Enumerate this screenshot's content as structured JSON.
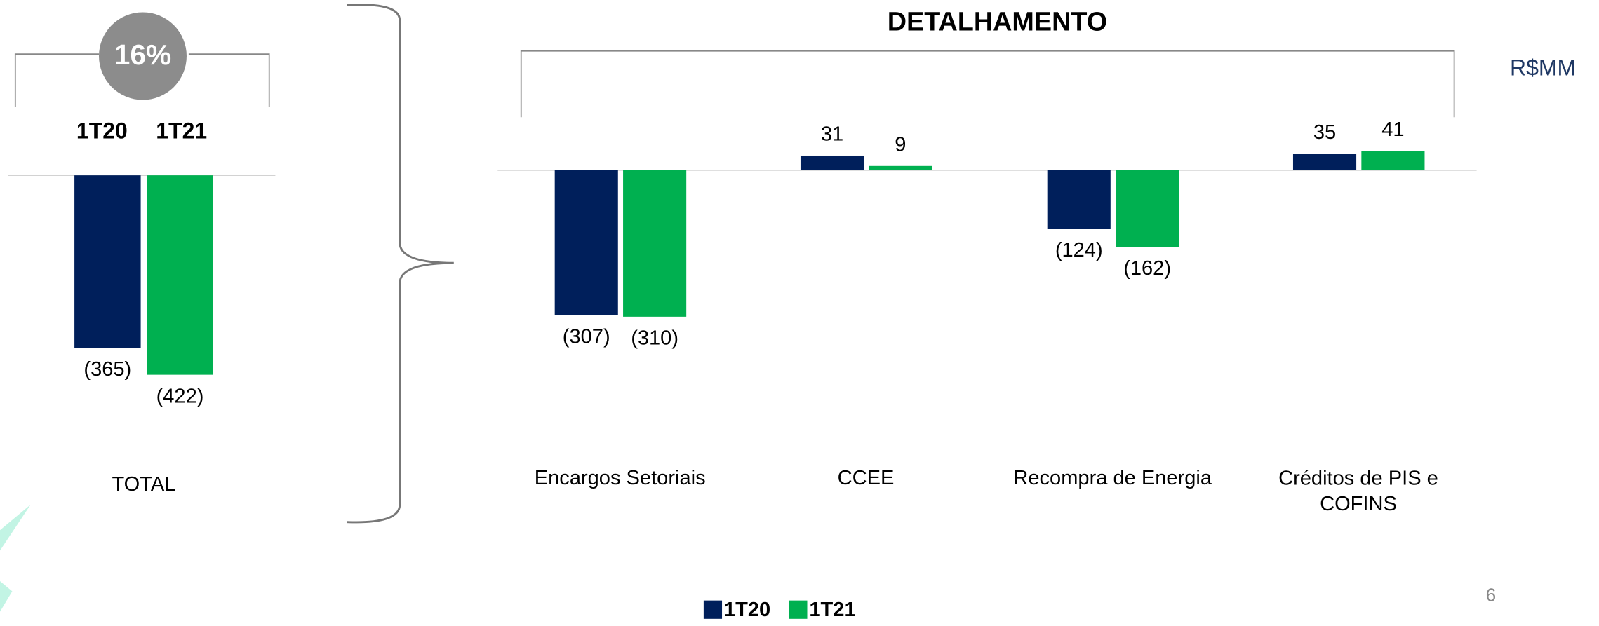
{
  "chart_data": [
    {
      "type": "bar",
      "badge": "16%",
      "categories": [
        "TOTAL"
      ],
      "series": [
        {
          "name": "1T20",
          "color": "#001f5b",
          "values": [
            -365
          ],
          "value_labels": [
            "(365)"
          ]
        },
        {
          "name": "1T21",
          "color": "#00b050",
          "values": [
            -422
          ],
          "value_labels": [
            "(422)"
          ]
        }
      ]
    },
    {
      "type": "bar",
      "title": "DETALHAMENTO",
      "unit": "R$MM",
      "categories": [
        "Encargos Setoriais",
        "CCEE",
        "Recompra de Energia",
        "Créditos de PIS e COFINS"
      ],
      "series": [
        {
          "name": "1T20",
          "color": "#001f5b",
          "values": [
            -307,
            31,
            -124,
            35
          ],
          "value_labels": [
            "(307)",
            "31",
            "(124)",
            "35"
          ]
        },
        {
          "name": "1T21",
          "color": "#00b050",
          "values": [
            -310,
            9,
            -162,
            41
          ],
          "value_labels": [
            "(310)",
            "9",
            "(162)",
            "41"
          ]
        }
      ],
      "legend": "bottom"
    }
  ],
  "page_number": "6"
}
